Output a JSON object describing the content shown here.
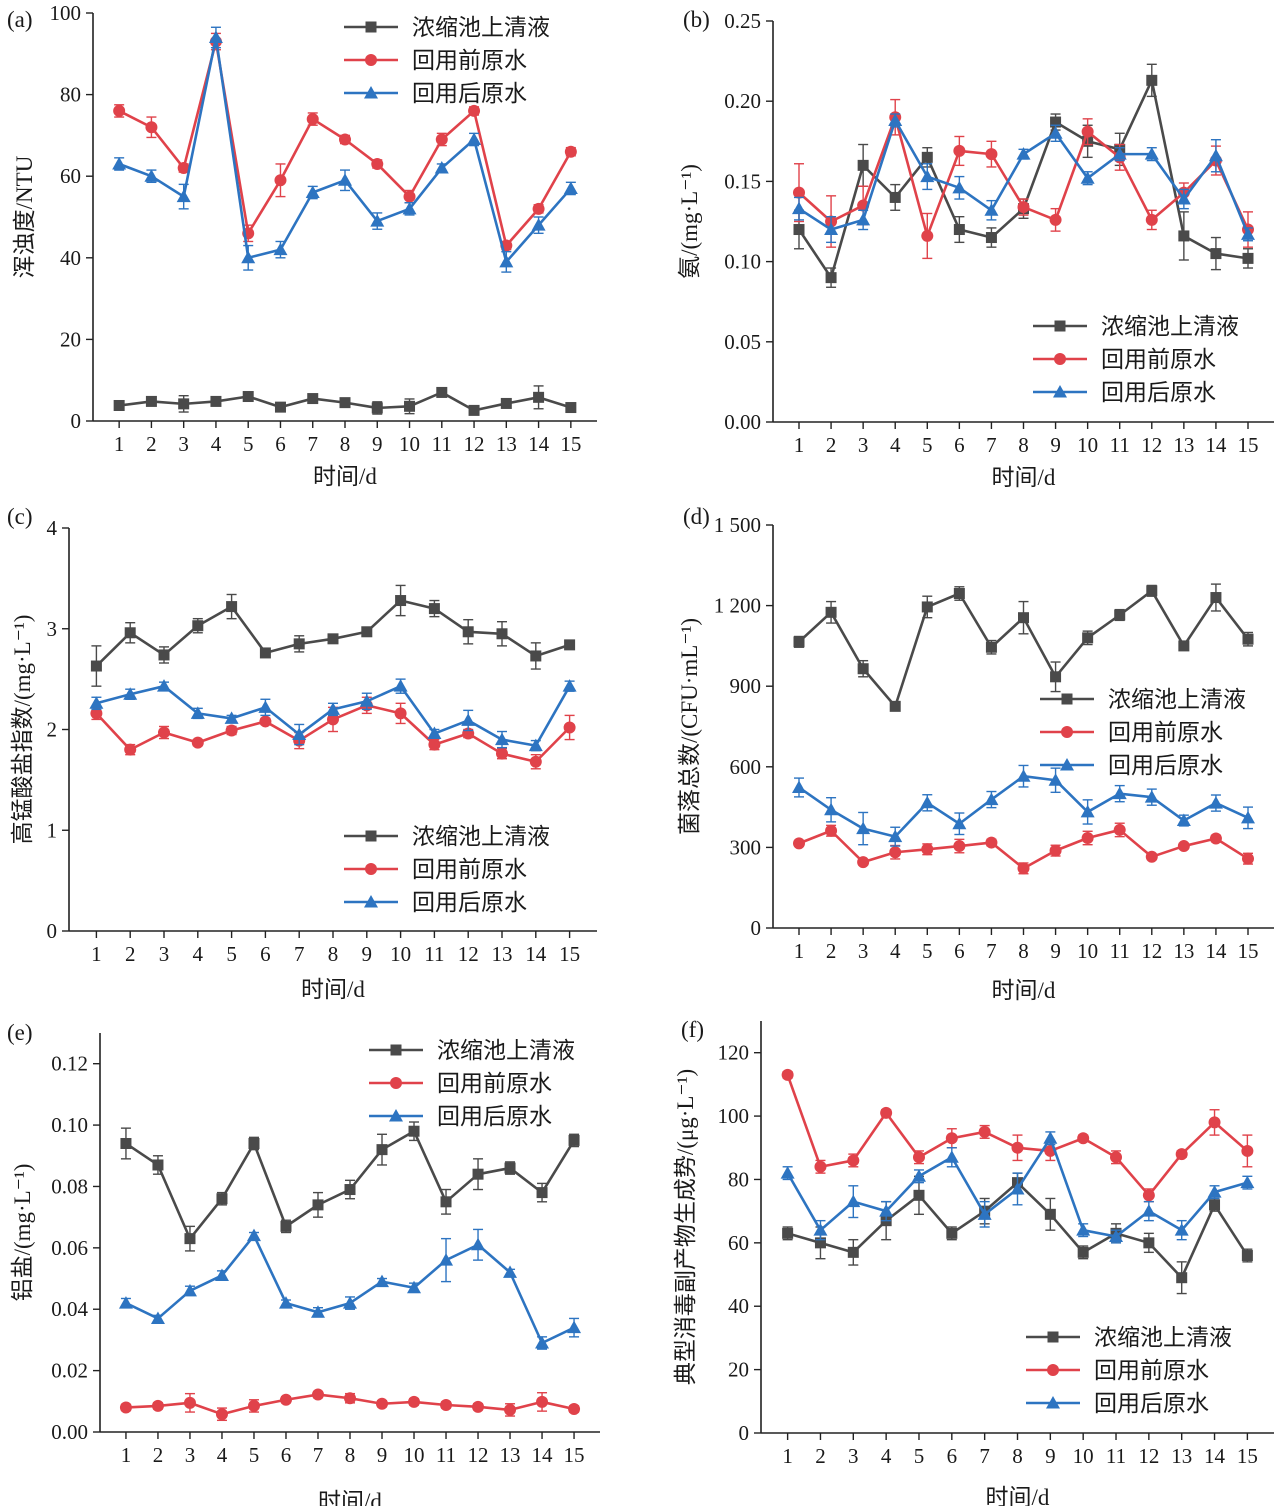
{
  "figure": {
    "series_names": [
      "浓缩池上清液",
      "回用前原水",
      "回用后原水"
    ],
    "series_colors": [
      "#4a4a4a",
      "#e0424a",
      "#2d74c1"
    ],
    "markers": [
      "square",
      "circle",
      "triangle"
    ]
  },
  "chart_data": [
    {
      "type": "line",
      "panel_label": "(a)",
      "xlabel": "时间/d",
      "ylabel": "浑浊度/NTU",
      "x": [
        1,
        2,
        3,
        4,
        5,
        6,
        7,
        8,
        9,
        10,
        11,
        12,
        13,
        14,
        15
      ],
      "ylim": [
        0,
        100
      ],
      "yticks": [
        0,
        20,
        40,
        60,
        80,
        100
      ],
      "ytick_labels": [
        "0",
        "20",
        "40",
        "60",
        "80",
        "100"
      ],
      "legend_position": "top-right",
      "series": [
        {
          "name": "浓缩池上清液",
          "values": [
            3.8,
            4.8,
            4.2,
            4.8,
            6.0,
            3.4,
            5.5,
            4.5,
            3.2,
            3.6,
            7.0,
            2.6,
            4.3,
            5.8,
            3.3
          ],
          "errors": [
            0.6,
            0.8,
            2.0,
            0.8,
            0.8,
            0.6,
            0.6,
            0.6,
            1.5,
            1.8,
            0.8,
            0.6,
            0.8,
            2.8,
            0.6
          ]
        },
        {
          "name": "回用前原水",
          "values": [
            76,
            72,
            62,
            93,
            46,
            59,
            74,
            69,
            63,
            55,
            69,
            76,
            43,
            52,
            66
          ],
          "errors": [
            1.5,
            2.5,
            1.0,
            2.0,
            2.0,
            4.0,
            1.5,
            1.0,
            1.0,
            1.5,
            1.5,
            1.0,
            1.0,
            1.0,
            1.0
          ]
        },
        {
          "name": "回用后原水",
          "values": [
            63,
            60,
            55,
            94,
            40,
            42,
            56,
            59,
            49,
            52,
            62,
            69,
            39,
            48,
            57
          ],
          "errors": [
            1.5,
            1.5,
            3.0,
            2.5,
            3.0,
            2.0,
            1.5,
            2.5,
            2.0,
            1.5,
            1.0,
            1.5,
            2.5,
            2.0,
            1.5
          ]
        }
      ]
    },
    {
      "type": "line",
      "panel_label": "(b)",
      "xlabel": "时间/d",
      "ylabel": "氨/(mg·L⁻¹)",
      "x": [
        1,
        2,
        3,
        4,
        5,
        6,
        7,
        8,
        9,
        10,
        11,
        12,
        13,
        14,
        15
      ],
      "ylim": [
        0,
        0.25
      ],
      "yticks": [
        0,
        0.05,
        0.1,
        0.15,
        0.2,
        0.25
      ],
      "ytick_labels": [
        "0.00",
        "0.05",
        "0.10",
        "0.15",
        "0.20",
        "0.25"
      ],
      "legend_position": "bottom-right",
      "series": [
        {
          "name": "浓缩池上清液",
          "values": [
            0.12,
            0.09,
            0.16,
            0.14,
            0.165,
            0.12,
            0.115,
            0.133,
            0.187,
            0.175,
            0.17,
            0.213,
            0.116,
            0.105,
            0.102
          ],
          "errors": [
            0.012,
            0.006,
            0.013,
            0.008,
            0.006,
            0.008,
            0.006,
            0.006,
            0.005,
            0.01,
            0.01,
            0.01,
            0.015,
            0.01,
            0.006
          ]
        },
        {
          "name": "回用前原水",
          "values": [
            0.143,
            0.125,
            0.135,
            0.19,
            0.116,
            0.169,
            0.167,
            0.134,
            0.126,
            0.181,
            0.165,
            0.126,
            0.143,
            0.163,
            0.12
          ],
          "errors": [
            0.018,
            0.016,
            0.012,
            0.011,
            0.014,
            0.009,
            0.008,
            0.005,
            0.007,
            0.008,
            0.008,
            0.006,
            0.006,
            0.009,
            0.011
          ]
        },
        {
          "name": "回用后原水",
          "values": [
            0.133,
            0.12,
            0.126,
            0.188,
            0.153,
            0.146,
            0.132,
            0.167,
            0.18,
            0.152,
            0.167,
            0.167,
            0.139,
            0.166,
            0.117
          ],
          "errors": [
            0.007,
            0.008,
            0.006,
            0.004,
            0.008,
            0.007,
            0.006,
            0.003,
            0.005,
            0.004,
            0.004,
            0.004,
            0.006,
            0.01,
            0.004
          ]
        }
      ]
    },
    {
      "type": "line",
      "panel_label": "(c)",
      "xlabel": "时间/d",
      "ylabel": "高锰酸盐指数/(mg·L⁻¹)",
      "x": [
        1,
        2,
        3,
        4,
        5,
        6,
        7,
        8,
        9,
        10,
        11,
        12,
        13,
        14,
        15
      ],
      "ylim": [
        0,
        4
      ],
      "yticks": [
        0,
        1,
        2,
        3,
        4
      ],
      "ytick_labels": [
        "0",
        "1",
        "2",
        "3",
        "4"
      ],
      "legend_position": "bottom-right",
      "series": [
        {
          "name": "浓缩池上清液",
          "values": [
            2.63,
            2.96,
            2.74,
            3.03,
            3.22,
            2.76,
            2.85,
            2.9,
            2.97,
            3.28,
            3.2,
            2.97,
            2.95,
            2.73,
            2.84
          ],
          "errors": [
            0.2,
            0.1,
            0.08,
            0.07,
            0.12,
            0.02,
            0.08,
            0.03,
            0.03,
            0.15,
            0.08,
            0.12,
            0.12,
            0.13,
            0.03
          ]
        },
        {
          "name": "回用前原水",
          "values": [
            2.16,
            1.8,
            1.97,
            1.87,
            1.99,
            2.08,
            1.89,
            2.1,
            2.24,
            2.16,
            1.85,
            1.96,
            1.76,
            1.68,
            2.02
          ],
          "errors": [
            0.06,
            0.05,
            0.06,
            0.03,
            0.04,
            0.03,
            0.08,
            0.12,
            0.08,
            0.1,
            0.05,
            0.04,
            0.05,
            0.07,
            0.12
          ]
        },
        {
          "name": "回用后原水",
          "values": [
            2.26,
            2.35,
            2.43,
            2.16,
            2.11,
            2.22,
            1.95,
            2.2,
            2.28,
            2.43,
            1.96,
            2.09,
            1.9,
            1.84,
            2.43
          ],
          "errors": [
            0.06,
            0.05,
            0.04,
            0.05,
            0.03,
            0.08,
            0.1,
            0.06,
            0.08,
            0.07,
            0.04,
            0.1,
            0.08,
            0.05,
            0.05
          ]
        }
      ]
    },
    {
      "type": "line",
      "panel_label": "(d)",
      "xlabel": "时间/d",
      "ylabel": "菌落总数/(CFU·mL⁻¹)",
      "x": [
        1,
        2,
        3,
        4,
        5,
        6,
        7,
        8,
        9,
        10,
        11,
        12,
        13,
        14,
        15
      ],
      "ylim": [
        0,
        1500
      ],
      "yticks": [
        0,
        300,
        600,
        900,
        1200,
        1500
      ],
      "ytick_labels": [
        "0",
        "300",
        "600",
        "900",
        "1 200",
        "1 500"
      ],
      "legend_position": "center-right",
      "series": [
        {
          "name": "浓缩池上清液",
          "values": [
            1065,
            1175,
            965,
            825,
            1195,
            1245,
            1045,
            1155,
            935,
            1080,
            1165,
            1255,
            1050,
            1230,
            1075
          ],
          "errors": [
            20,
            40,
            30,
            10,
            40,
            25,
            25,
            60,
            55,
            25,
            20,
            20,
            15,
            50,
            25
          ]
        },
        {
          "name": "回用前原水",
          "values": [
            315,
            362,
            245,
            282,
            293,
            305,
            318,
            222,
            288,
            335,
            365,
            265,
            305,
            333,
            258
          ],
          "errors": [
            10,
            20,
            10,
            25,
            20,
            25,
            12,
            20,
            20,
            25,
            25,
            10,
            10,
            12,
            20
          ]
        },
        {
          "name": "回用后原水",
          "values": [
            523,
            440,
            370,
            340,
            466,
            388,
            478,
            565,
            550,
            432,
            500,
            487,
            400,
            465,
            410
          ],
          "errors": [
            35,
            45,
            60,
            35,
            30,
            40,
            30,
            40,
            45,
            45,
            30,
            30,
            20,
            30,
            40
          ]
        }
      ]
    },
    {
      "type": "line",
      "panel_label": "(e)",
      "xlabel": "时间/d",
      "ylabel": "铝盐/(mg·L⁻¹)",
      "x": [
        1,
        2,
        3,
        4,
        5,
        6,
        7,
        8,
        9,
        10,
        11,
        12,
        13,
        14,
        15
      ],
      "ylim": [
        0,
        0.13
      ],
      "yticks": [
        0,
        0.02,
        0.04,
        0.06,
        0.08,
        0.1,
        0.12
      ],
      "ytick_labels": [
        "0.00",
        "0.02",
        "0.04",
        "0.06",
        "0.08",
        "0.10",
        "0.12"
      ],
      "legend_position": "top-right",
      "series": [
        {
          "name": "浓缩池上清液",
          "values": [
            0.094,
            0.087,
            0.063,
            0.076,
            0.094,
            0.067,
            0.074,
            0.079,
            0.092,
            0.098,
            0.075,
            0.084,
            0.086,
            0.078,
            0.095
          ],
          "errors": [
            0.005,
            0.003,
            0.004,
            0.002,
            0.002,
            0.002,
            0.004,
            0.003,
            0.005,
            0.003,
            0.004,
            0.005,
            0.002,
            0.003,
            0.002
          ]
        },
        {
          "name": "回用前原水",
          "values": [
            0.008,
            0.0085,
            0.0095,
            0.0058,
            0.0085,
            0.0105,
            0.0122,
            0.011,
            0.0092,
            0.0098,
            0.0088,
            0.0082,
            0.0072,
            0.0098,
            0.0075
          ],
          "errors": [
            0.001,
            0.001,
            0.003,
            0.002,
            0.002,
            0.001,
            0.001,
            0.0015,
            0.001,
            0.001,
            0.001,
            0.001,
            0.002,
            0.003,
            0.001
          ]
        },
        {
          "name": "回用后原水",
          "values": [
            0.042,
            0.037,
            0.046,
            0.051,
            0.064,
            0.042,
            0.039,
            0.042,
            0.049,
            0.047,
            0.056,
            0.061,
            0.052,
            0.029,
            0.034
          ],
          "errors": [
            0.0015,
            0.001,
            0.0015,
            0.0015,
            0.001,
            0.001,
            0.0015,
            0.002,
            0.001,
            0.0015,
            0.007,
            0.005,
            0.001,
            0.002,
            0.003
          ]
        }
      ]
    },
    {
      "type": "line",
      "panel_label": "(f)",
      "xlabel": "时间/d",
      "ylabel": "典型消毒副产物生成势/(μg·L⁻¹)",
      "x": [
        1,
        2,
        3,
        4,
        5,
        6,
        7,
        8,
        9,
        10,
        11,
        12,
        13,
        14,
        15
      ],
      "ylim": [
        0,
        130
      ],
      "yticks": [
        0,
        20,
        40,
        60,
        80,
        100,
        120
      ],
      "ytick_labels": [
        "0",
        "20",
        "40",
        "60",
        "80",
        "100",
        "120"
      ],
      "legend_position": "bottom-right",
      "series": [
        {
          "name": "浓缩池上清液",
          "values": [
            63,
            60,
            57,
            67,
            75,
            63,
            70,
            79,
            69,
            57,
            63,
            60,
            49,
            72,
            56
          ],
          "errors": [
            2,
            5,
            4,
            6,
            6,
            2,
            4,
            3,
            5,
            2,
            3,
            3,
            5,
            2,
            2
          ]
        },
        {
          "name": "回用前原水",
          "values": [
            113,
            84,
            86,
            101,
            87,
            93,
            95,
            90,
            89,
            93,
            87,
            75,
            88,
            98,
            89
          ],
          "errors": [
            1,
            2,
            2,
            1,
            2,
            3,
            2,
            4,
            3,
            1,
            2,
            2,
            1,
            4,
            5
          ]
        },
        {
          "name": "回用后原水",
          "values": [
            82,
            64,
            73,
            70,
            81,
            87,
            69,
            77,
            93,
            64,
            62,
            70,
            64,
            76,
            79
          ],
          "errors": [
            2,
            3,
            5,
            3,
            2,
            3,
            4,
            5,
            2,
            2,
            2,
            3,
            3,
            2,
            2
          ]
        }
      ]
    }
  ]
}
